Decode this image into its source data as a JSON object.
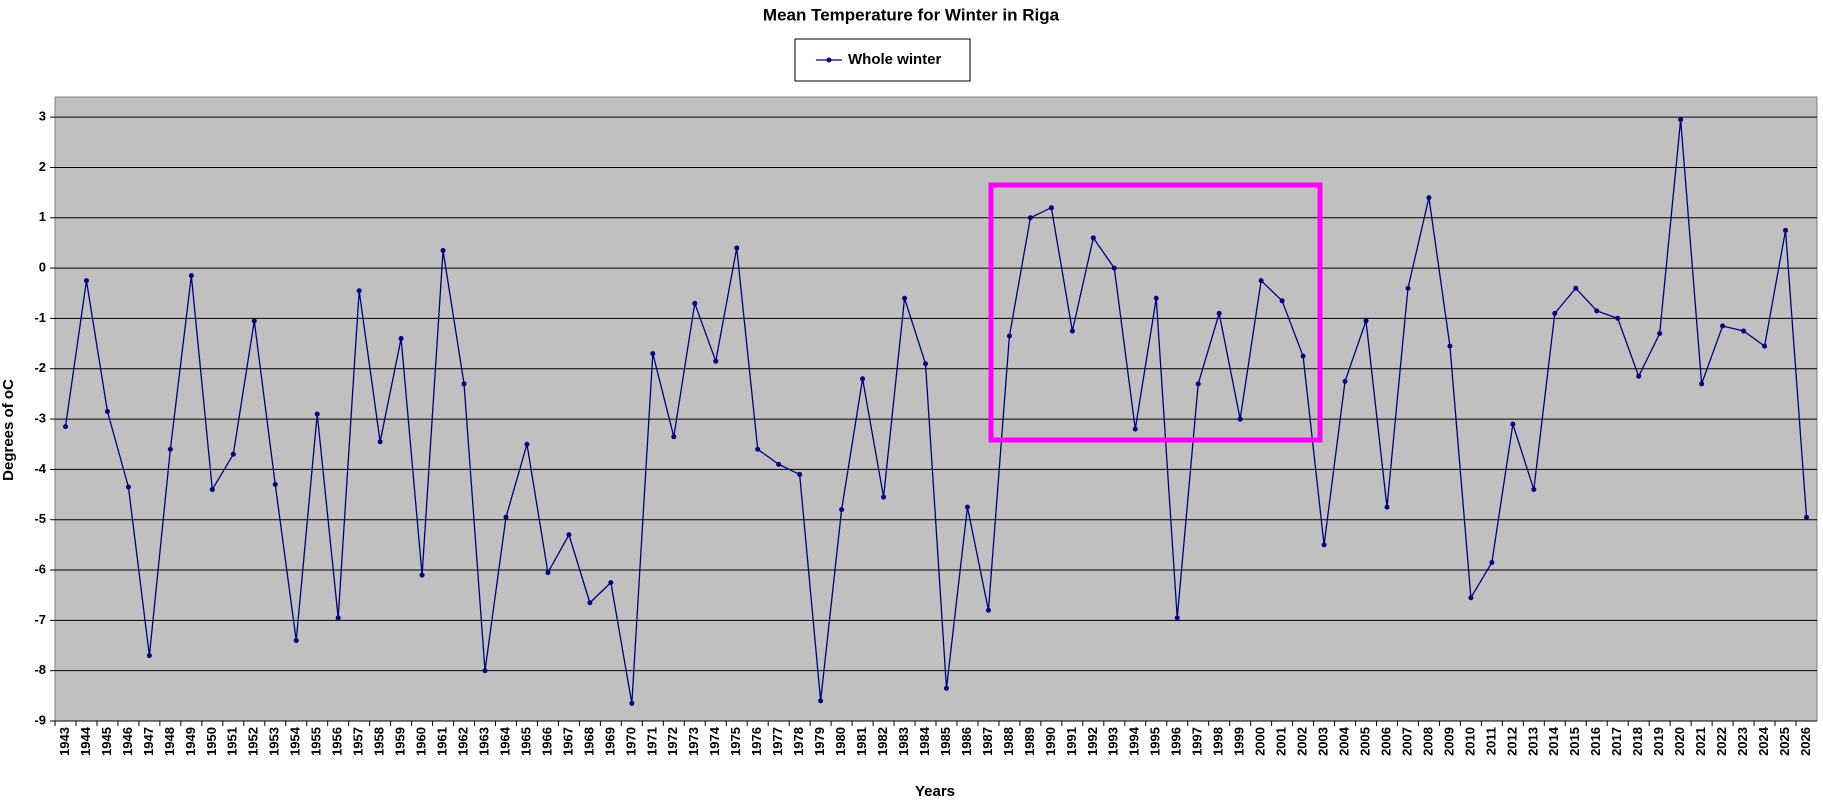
{
  "chart_data": {
    "type": "line",
    "title": "Mean Temperature for Winter in Riga",
    "x_label": "Years",
    "y_label": "Degrees of  oC",
    "categories": [
      "1943",
      "1944",
      "1945",
      "1946",
      "1947",
      "1948",
      "1949",
      "1950",
      "1951",
      "1952",
      "1953",
      "1954",
      "1955",
      "1956",
      "1957",
      "1958",
      "1959",
      "1960",
      "1961",
      "1962",
      "1963",
      "1964",
      "1965",
      "1966",
      "1967",
      "1968",
      "1969",
      "1970",
      "1971",
      "1972",
      "1973",
      "1974",
      "1975",
      "1976",
      "1977",
      "1978",
      "1979",
      "1980",
      "1981",
      "1982",
      "1983",
      "1984",
      "1985",
      "1986",
      "1987",
      "1988",
      "1989",
      "1990",
      "1991",
      "1992",
      "1993",
      "1994",
      "1995",
      "1996",
      "1997",
      "1998",
      "1999",
      "2000",
      "2001",
      "2002",
      "2003",
      "2004",
      "2005",
      "2006",
      "2007",
      "2008",
      "2009",
      "2010",
      "2011",
      "2012",
      "2013",
      "2014",
      "2015",
      "2016",
      "2017",
      "2018",
      "2019",
      "2020",
      "2021",
      "2022",
      "2023",
      "2024",
      "2025",
      "2026"
    ],
    "series": [
      {
        "name": "Whole winter",
        "color": "#000080",
        "values": [
          -3.15,
          -0.25,
          -2.85,
          -4.35,
          -7.7,
          -3.6,
          -0.15,
          -4.4,
          -3.7,
          -1.05,
          -4.3,
          -7.4,
          -2.9,
          -6.95,
          -0.45,
          -3.45,
          -1.4,
          -6.1,
          0.35,
          -2.3,
          -8.0,
          -4.95,
          -3.5,
          -6.05,
          -5.3,
          -6.65,
          -6.25,
          -8.65,
          -1.7,
          -3.35,
          -0.7,
          -1.85,
          0.4,
          -3.6,
          -3.9,
          -4.1,
          -8.6,
          -4.8,
          -2.2,
          -4.55,
          -0.6,
          -1.9,
          -8.35,
          -4.75,
          -6.8,
          -1.35,
          1.0,
          1.2,
          -1.25,
          0.6,
          0.0,
          -3.2,
          -0.6,
          -6.95,
          -2.3,
          -0.9,
          -3.0,
          -0.25,
          -0.65,
          -1.75,
          -5.5,
          -2.25,
          -1.05,
          -4.75,
          -0.4,
          1.4,
          -1.55,
          -6.55,
          -5.85,
          -3.1,
          -4.4,
          -0.9,
          -0.4,
          -0.85,
          -1.0,
          -2.15,
          -1.3,
          2.95,
          -2.3,
          -1.15,
          -1.25,
          -1.55,
          0.75,
          -4.95
        ]
      }
    ],
    "ylim": [
      -9,
      3.4
    ],
    "yticks": [
      -9,
      -8,
      -7,
      -6,
      -5,
      -4,
      -3,
      -2,
      -1,
      0,
      1,
      2,
      3
    ],
    "grid": true,
    "legend": "top",
    "plot_background": "#c0c0c0"
  }
}
